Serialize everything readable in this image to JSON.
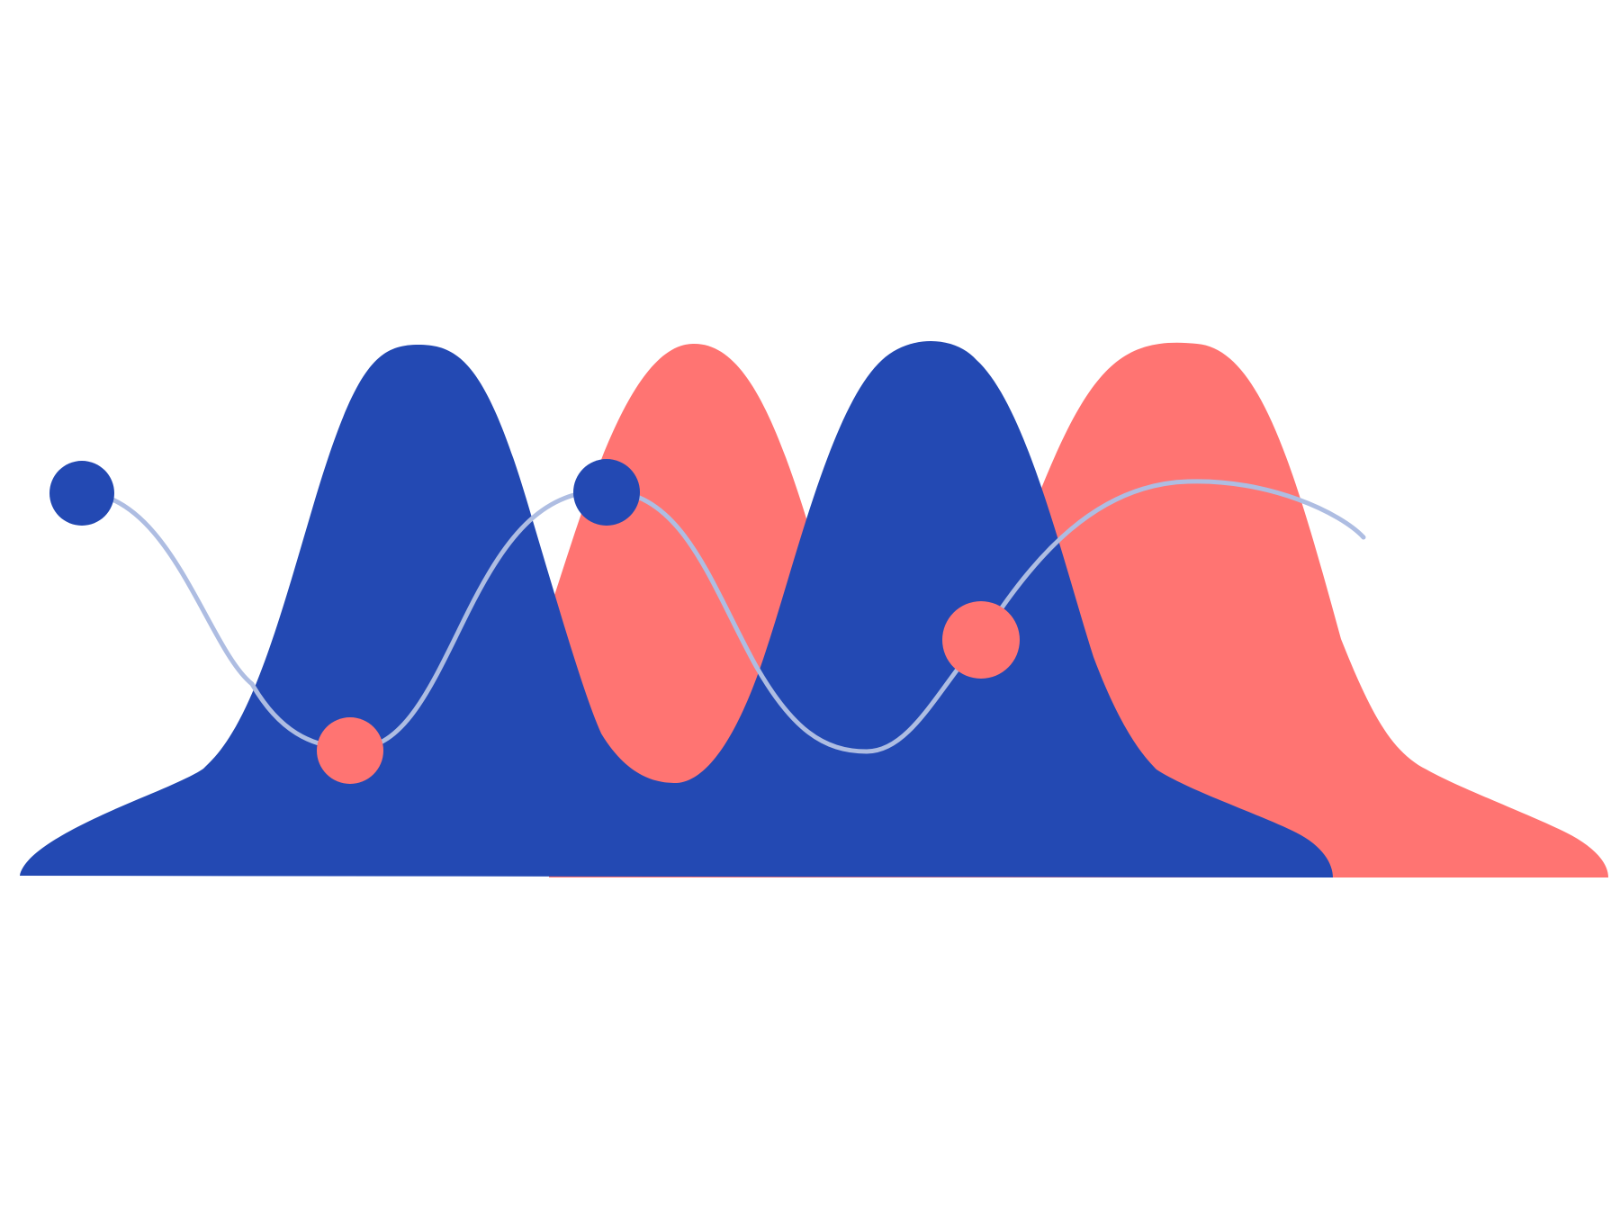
{
  "colors": {
    "background": "#ffffff",
    "primary": "#2349b3",
    "accent": "#ff7472",
    "line": "#aebde2"
  },
  "shapes": {
    "back_wave": {
      "name": "coral-wave-shape",
      "color_key": "accent"
    },
    "front_wave": {
      "name": "blue-wave-shape",
      "color_key": "primary"
    },
    "connector": {
      "name": "connector-curve",
      "color_key": "line"
    }
  },
  "markers": [
    {
      "name": "marker-dot-1",
      "color_key": "primary"
    },
    {
      "name": "marker-dot-2",
      "color_key": "accent"
    },
    {
      "name": "marker-dot-3",
      "color_key": "primary"
    },
    {
      "name": "marker-dot-4",
      "color_key": "accent"
    }
  ]
}
